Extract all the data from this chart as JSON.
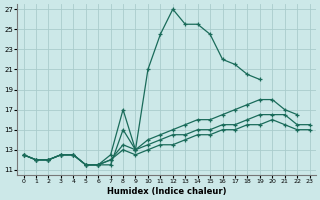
{
  "xlabel": "Humidex (Indice chaleur)",
  "bg_color": "#cce8e8",
  "grid_color": "#aacccc",
  "line_color": "#1a6b5a",
  "xlim": [
    -0.5,
    23.5
  ],
  "ylim": [
    10.5,
    27.5
  ],
  "xticks": [
    0,
    1,
    2,
    3,
    4,
    5,
    6,
    7,
    8,
    9,
    10,
    11,
    12,
    13,
    14,
    15,
    16,
    17,
    18,
    19,
    20,
    21,
    22,
    23
  ],
  "yticks": [
    11,
    13,
    15,
    17,
    19,
    21,
    23,
    25,
    27
  ],
  "series": [
    {
      "x": [
        0,
        1,
        2,
        3,
        4,
        5,
        6,
        7,
        8,
        9,
        10,
        11,
        12,
        13,
        14,
        15,
        16,
        17,
        18,
        19,
        20,
        21,
        22,
        23
      ],
      "y": [
        12.5,
        12.0,
        12.0,
        12.5,
        12.5,
        11.5,
        11.5,
        11.5,
        15.0,
        13.0,
        21.0,
        24.5,
        27.0,
        25.5,
        25.5,
        24.5,
        22.0,
        21.5,
        20.5,
        20.0,
        null,
        null,
        null,
        null
      ]
    },
    {
      "x": [
        0,
        1,
        2,
        3,
        4,
        5,
        6,
        7,
        8,
        9,
        10,
        11,
        12,
        13,
        14,
        15,
        16,
        17,
        18,
        19,
        20,
        21,
        22,
        23
      ],
      "y": [
        12.5,
        12.0,
        12.0,
        12.5,
        12.5,
        11.5,
        11.5,
        12.5,
        17.0,
        13.0,
        14.0,
        14.5,
        15.0,
        15.5,
        16.0,
        16.0,
        16.5,
        17.0,
        17.5,
        18.0,
        18.0,
        17.0,
        16.5,
        null
      ]
    },
    {
      "x": [
        0,
        1,
        2,
        3,
        4,
        5,
        6,
        7,
        8,
        9,
        10,
        11,
        12,
        13,
        14,
        15,
        16,
        17,
        18,
        19,
        20,
        21,
        22,
        23
      ],
      "y": [
        12.5,
        12.0,
        12.0,
        12.5,
        12.5,
        11.5,
        11.5,
        12.0,
        13.5,
        13.0,
        13.5,
        14.0,
        14.5,
        14.5,
        15.0,
        15.0,
        15.5,
        15.5,
        16.0,
        16.5,
        16.5,
        16.5,
        15.5,
        15.5
      ]
    },
    {
      "x": [
        0,
        1,
        2,
        3,
        4,
        5,
        6,
        7,
        8,
        9,
        10,
        11,
        12,
        13,
        14,
        15,
        16,
        17,
        18,
        19,
        20,
        21,
        22,
        23
      ],
      "y": [
        12.5,
        12.0,
        12.0,
        12.5,
        12.5,
        11.5,
        11.5,
        12.0,
        13.0,
        12.5,
        13.0,
        13.5,
        13.5,
        14.0,
        14.5,
        14.5,
        15.0,
        15.0,
        15.5,
        15.5,
        16.0,
        15.5,
        15.0,
        15.0
      ]
    }
  ]
}
